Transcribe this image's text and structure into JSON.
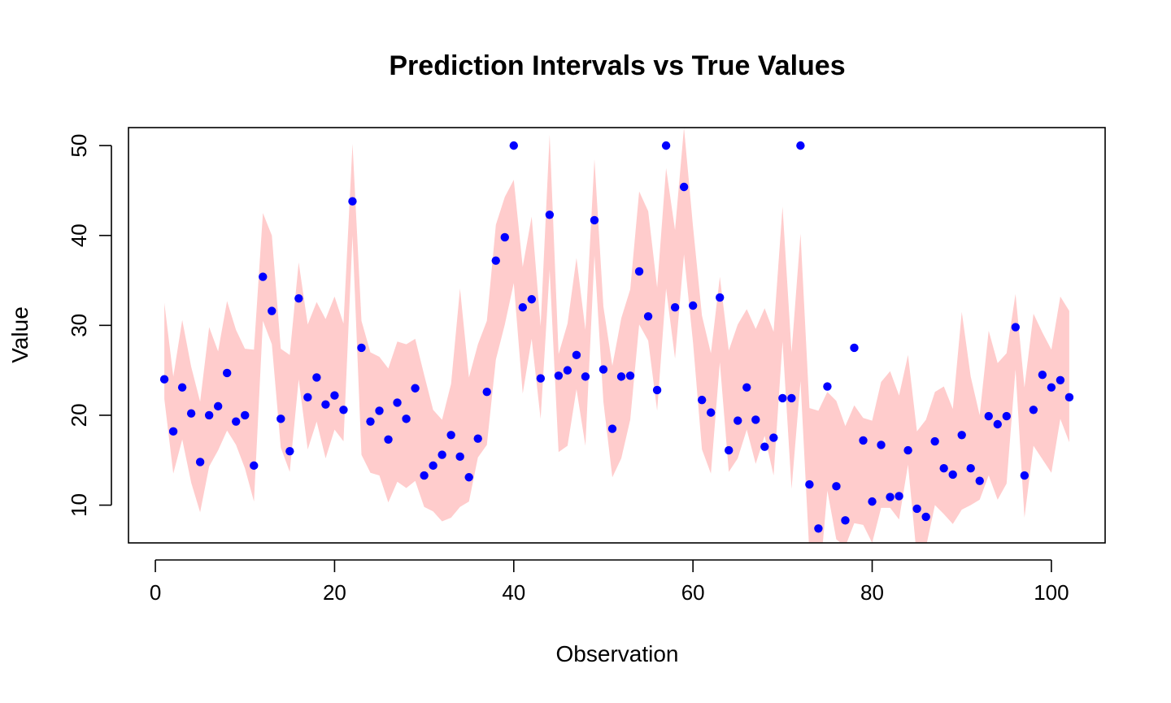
{
  "chart_data": {
    "type": "scatter",
    "title": "Prediction Intervals vs True Values",
    "xlabel": "Observation",
    "ylabel": "Value",
    "xlim": [
      -3,
      106
    ],
    "ylim": [
      5.8,
      52.0
    ],
    "x_ticks": [
      0,
      20,
      40,
      60,
      80,
      100
    ],
    "y_ticks": [
      10,
      20,
      30,
      40,
      50
    ],
    "grid": false,
    "legend": "none",
    "colors": {
      "points": "#0000ff",
      "band": "#ffcccc",
      "axis": "#000000"
    },
    "series": [
      {
        "values": [
          24.0,
          18.2,
          23.1,
          20.2,
          14.8,
          20.0,
          21.0,
          24.7,
          19.3,
          20.0,
          14.4,
          35.4,
          31.6,
          19.6,
          16.0,
          33.0,
          22.0,
          24.2,
          21.2,
          22.2,
          20.6,
          43.8,
          27.5,
          19.3,
          20.5,
          17.3,
          21.4,
          19.6,
          23.0,
          13.3,
          14.4,
          15.6,
          17.8,
          15.4,
          13.1,
          17.4,
          22.6,
          37.2,
          39.8,
          50.0,
          32.0,
          32.9,
          24.1,
          42.3,
          24.4,
          25.0,
          26.7,
          24.3,
          41.7,
          25.1,
          18.5,
          24.3,
          24.4,
          36.0,
          31.0,
          22.8,
          50.0,
          32.0,
          45.4,
          32.2,
          21.7,
          20.3,
          33.1,
          16.1,
          19.4,
          23.1,
          19.5,
          16.5,
          17.5,
          21.9,
          21.9,
          50.0,
          12.3,
          7.4,
          23.2,
          12.1,
          8.3,
          27.5,
          17.2,
          10.4,
          16.7,
          10.9,
          11.0,
          16.1,
          9.6,
          8.7,
          17.1,
          14.1,
          13.4,
          17.8,
          14.1,
          12.7,
          19.9,
          19.0,
          19.9,
          29.8,
          13.3,
          20.6,
          24.5,
          23.1,
          23.9,
          22.0
        ]
      }
    ],
    "interval_upper": [
      32.5,
      24.3,
      30.6,
      25.4,
      21.5,
      29.8,
      27.1,
      32.7,
      29.5,
      27.4,
      27.3,
      42.5,
      40.0,
      27.4,
      26.7,
      37.0,
      30.1,
      32.6,
      30.7,
      33.2,
      30.2,
      50.2,
      30.5,
      27.0,
      26.5,
      25.2,
      28.2,
      27.9,
      28.5,
      24.5,
      20.6,
      19.5,
      23.5,
      34.1,
      24.2,
      27.9,
      30.5,
      41.2,
      44.3,
      46.2,
      36.5,
      42.1,
      29.9,
      51.2,
      26.8,
      30.2,
      37.5,
      29.5,
      48.5,
      32.1,
      25.5,
      30.8,
      34.0,
      44.9,
      42.7,
      34.2,
      47.5,
      40.6,
      52.0,
      41.0,
      31.1,
      26.9,
      35.4,
      27.2,
      30.1,
      31.8,
      29.6,
      31.9,
      29.3,
      43.2,
      27.0,
      40.2,
      20.8,
      20.5,
      22.6,
      21.6,
      18.8,
      21.1,
      19.7,
      19.4,
      23.7,
      24.9,
      22.2,
      26.7,
      18.2,
      19.5,
      22.6,
      23.2,
      20.7,
      31.5,
      24.3,
      20.0,
      29.4,
      25.8,
      26.9,
      33.5,
      23.1,
      31.3,
      29.2,
      27.3,
      33.2,
      31.6
    ],
    "interval_lower": [
      21.8,
      13.5,
      17.3,
      12.5,
      9.2,
      14.3,
      16.1,
      18.3,
      16.7,
      14.1,
      10.4,
      30.5,
      27.9,
      16.4,
      13.7,
      24.0,
      16.2,
      19.3,
      15.2,
      18.4,
      17.1,
      40.0,
      15.6,
      13.6,
      13.3,
      10.3,
      12.6,
      11.9,
      12.7,
      9.8,
      9.3,
      8.2,
      8.6,
      9.8,
      10.4,
      15.3,
      16.7,
      26.2,
      30.1,
      34.7,
      22.4,
      28.5,
      19.6,
      36.2,
      15.9,
      16.6,
      22.9,
      16.6,
      37.8,
      21.5,
      13.1,
      15.2,
      19.5,
      30.1,
      28.3,
      20.5,
      34.1,
      26.3,
      37.9,
      28.1,
      16.2,
      13.5,
      25.9,
      13.7,
      15.2,
      18.4,
      14.6,
      17.7,
      13.3,
      28.2,
      11.8,
      23.8,
      4.5,
      0.1,
      11.6,
      6.2,
      5.4,
      8.0,
      7.8,
      5.8,
      9.7,
      9.7,
      8.4,
      14.5,
      4.1,
      5.3,
      10.0,
      9.0,
      7.9,
      9.5,
      10.0,
      10.6,
      13.3,
      10.6,
      12.4,
      25.1,
      8.6,
      16.6,
      15.1,
      13.6,
      19.6,
      17.0
    ]
  }
}
